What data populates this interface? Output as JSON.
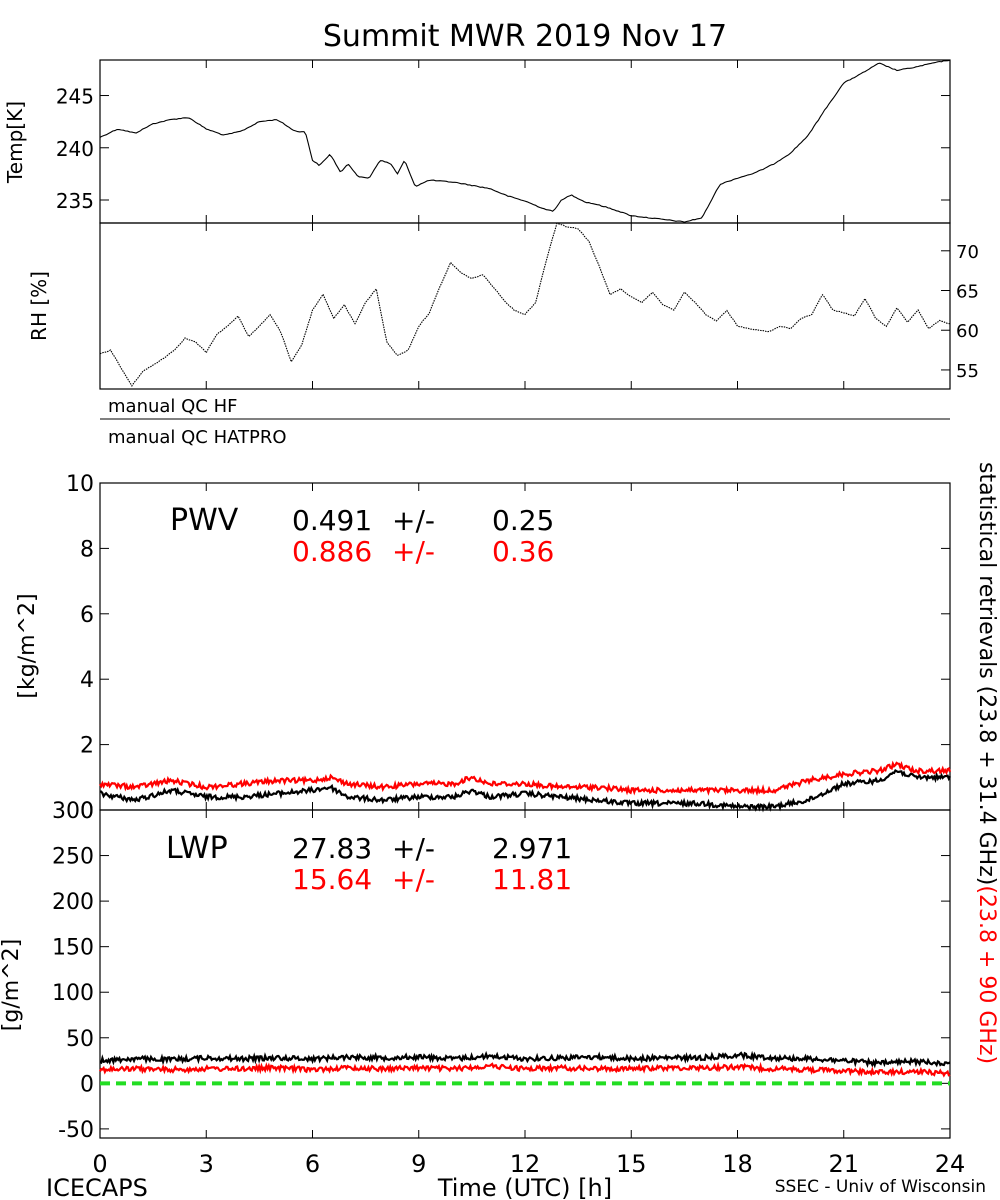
{
  "title": "Summit MWR 2019 Nov 17",
  "footer": {
    "left": "ICECAPS",
    "center": "Time (UTC) [h]",
    "right": "SSEC - Univ of Wisconsin"
  },
  "colors": {
    "primary": "#000000",
    "secondary": "#ff0000",
    "zero_line": "#22dd22"
  },
  "chart_data": [
    {
      "type": "line",
      "panel": "temperature",
      "ylabel": "Temp[K]",
      "ylim": [
        232.8,
        248.4
      ],
      "yticks": [
        235,
        240,
        245
      ],
      "xlim": [
        0,
        24
      ],
      "series": [
        {
          "color": "#000000",
          "x": [
            0,
            0.5,
            1,
            1.5,
            2,
            2.5,
            3,
            3.5,
            4,
            4.5,
            5,
            5.5,
            5.8,
            6,
            6.2,
            6.5,
            6.8,
            7,
            7.3,
            7.6,
            7.9,
            8.2,
            8.4,
            8.6,
            8.9,
            9.3,
            10,
            10.5,
            11,
            11.5,
            12,
            12.5,
            12.8,
            13,
            13.3,
            13.7,
            14,
            14.5,
            15,
            15.5,
            16,
            16.5,
            17,
            17.5,
            18,
            18.5,
            19,
            19.5,
            20,
            20.5,
            21,
            21.5,
            22,
            22.5,
            23,
            23.5,
            24
          ],
          "values": [
            241,
            241.8,
            241.4,
            242.3,
            242.7,
            242.9,
            241.8,
            241.2,
            241.6,
            242.5,
            242.7,
            241.6,
            241.5,
            238.8,
            238.3,
            239.4,
            237.6,
            238.5,
            237.2,
            237.1,
            238.8,
            238.5,
            237.5,
            238.8,
            236.3,
            236.9,
            236.7,
            236.4,
            236.1,
            235.4,
            234.9,
            234.2,
            233.9,
            234.9,
            235.5,
            234.8,
            234.6,
            234.1,
            233.5,
            233.3,
            233.1,
            232.9,
            233.3,
            236.5,
            237.1,
            237.6,
            238.4,
            239.5,
            241.2,
            243.8,
            246.2,
            247.1,
            248.1,
            247.4,
            247.7,
            248.1,
            248.4
          ]
        }
      ]
    },
    {
      "type": "line",
      "panel": "relative-humidity",
      "ylabel": "RH [%]",
      "ylim": [
        52.6,
        73.5
      ],
      "yticks": [
        55,
        60,
        65,
        70
      ],
      "xlim": [
        0,
        24
      ],
      "series": [
        {
          "color": "#000000",
          "x": [
            0,
            0.3,
            0.6,
            0.9,
            1.2,
            1.5,
            1.8,
            2.1,
            2.4,
            2.7,
            3,
            3.3,
            3.6,
            3.9,
            4.2,
            4.5,
            4.8,
            5.1,
            5.4,
            5.7,
            6,
            6.3,
            6.6,
            6.9,
            7.2,
            7.5,
            7.8,
            8.1,
            8.4,
            8.7,
            9,
            9.3,
            9.6,
            9.9,
            10.2,
            10.5,
            10.8,
            11.1,
            11.4,
            11.7,
            12,
            12.3,
            12.6,
            12.9,
            13.2,
            13.5,
            13.8,
            14.1,
            14.4,
            14.7,
            15,
            15.3,
            15.6,
            15.9,
            16.2,
            16.5,
            16.8,
            17.1,
            17.4,
            17.7,
            18,
            18.3,
            18.6,
            18.9,
            19.2,
            19.5,
            19.8,
            20.1,
            20.4,
            20.7,
            21,
            21.3,
            21.6,
            21.9,
            22.2,
            22.5,
            22.8,
            23.1,
            23.4,
            23.7,
            24
          ],
          "values": [
            57,
            57.5,
            55.2,
            53,
            54.8,
            55.6,
            56.5,
            57.5,
            59,
            58.5,
            57.2,
            59.5,
            60.5,
            61.8,
            59.2,
            60.5,
            62,
            59.8,
            56,
            58.2,
            62.5,
            64.5,
            61.5,
            63.2,
            60.8,
            63.5,
            65.2,
            58.5,
            56.8,
            57.5,
            60.5,
            62.2,
            65.5,
            68.5,
            67.2,
            66.5,
            67,
            65.5,
            63.8,
            62.5,
            62,
            63.5,
            68.8,
            73.5,
            73,
            72.8,
            71.2,
            68,
            64.5,
            65.2,
            64.2,
            63.5,
            64.8,
            63.2,
            62.5,
            64.8,
            63.5,
            62,
            61.2,
            62.5,
            60.5,
            60.2,
            60,
            59.8,
            60.5,
            60.2,
            61.5,
            62,
            64.5,
            62.5,
            62.2,
            61.8,
            64,
            61.5,
            60.5,
            62.8,
            61,
            62.5,
            60.2,
            61.2,
            60.8
          ]
        }
      ]
    },
    {
      "type": "line",
      "panel": "pwv",
      "label": "PWV",
      "ylabel": "[kg/m^2]",
      "ylim": [
        0,
        10
      ],
      "yticks": [
        0,
        2,
        4,
        6,
        8,
        10
      ],
      "xlim": [
        0,
        24
      ],
      "stats": [
        {
          "color": "#000000",
          "mean": "0.491",
          "pm": "+/-",
          "sd": "0.25"
        },
        {
          "color": "#ff0000",
          "mean": "0.886",
          "pm": "+/-",
          "sd": "0.36"
        }
      ],
      "series": [
        {
          "color": "#000000",
          "x": [
            0,
            1,
            2,
            3,
            4,
            5,
            6,
            6.5,
            7,
            8,
            9,
            10,
            10.5,
            11,
            12,
            13,
            14,
            15,
            16,
            17,
            18,
            19,
            20,
            21,
            22,
            22.5,
            23,
            24
          ],
          "values": [
            0.5,
            0.3,
            0.6,
            0.4,
            0.4,
            0.5,
            0.6,
            0.7,
            0.4,
            0.3,
            0.4,
            0.4,
            0.6,
            0.4,
            0.5,
            0.4,
            0.3,
            0.2,
            0.2,
            0.2,
            0.1,
            0.1,
            0.3,
            0.8,
            0.9,
            1.2,
            1.0,
            1.0
          ]
        },
        {
          "color": "#ff0000",
          "x": [
            0,
            1,
            2,
            3,
            4,
            5,
            6,
            6.5,
            7,
            8,
            9,
            10,
            10.5,
            11,
            12,
            13,
            14,
            15,
            16,
            17,
            18,
            19,
            20,
            21,
            22,
            22.5,
            23,
            24
          ],
          "values": [
            0.8,
            0.7,
            0.9,
            0.7,
            0.8,
            0.9,
            0.9,
            1.0,
            0.8,
            0.7,
            0.8,
            0.8,
            1.0,
            0.8,
            0.8,
            0.7,
            0.7,
            0.6,
            0.6,
            0.6,
            0.6,
            0.6,
            0.9,
            1.1,
            1.2,
            1.4,
            1.2,
            1.2
          ]
        }
      ]
    },
    {
      "type": "line",
      "panel": "lwp",
      "label": "LWP",
      "ylabel": "[g/m^2]",
      "ylim": [
        -60,
        300
      ],
      "yticks": [
        -50,
        0,
        50,
        100,
        150,
        200,
        250,
        300
      ],
      "xlim": [
        0,
        24
      ],
      "xticks": [
        0,
        3,
        6,
        9,
        12,
        15,
        18,
        21,
        24
      ],
      "stats": [
        {
          "color": "#000000",
          "mean": "27.83",
          "pm": "+/-",
          "sd": "2.971"
        },
        {
          "color": "#ff0000",
          "mean": "15.64",
          "pm": "+/-",
          "sd": "11.81"
        }
      ],
      "reference_line": {
        "y": 0,
        "color": "#22dd22",
        "style": "dashed"
      },
      "series": [
        {
          "color": "#000000",
          "x": [
            0,
            1,
            2,
            3,
            4,
            5,
            6,
            7,
            8,
            9,
            10,
            11,
            12,
            13,
            14,
            15,
            16,
            17,
            18,
            19,
            20,
            21,
            22,
            23,
            24
          ],
          "values": [
            25,
            27,
            26,
            28,
            27,
            28,
            27,
            29,
            28,
            29,
            27,
            30,
            27,
            28,
            29,
            27,
            28,
            28,
            31,
            28,
            27,
            25,
            22,
            24,
            22
          ]
        },
        {
          "color": "#ff0000",
          "x": [
            0,
            1,
            2,
            3,
            4,
            5,
            6,
            7,
            8,
            9,
            10,
            11,
            12,
            13,
            14,
            15,
            16,
            17,
            18,
            19,
            20,
            21,
            22,
            23,
            24
          ],
          "values": [
            15,
            16,
            15,
            16,
            16,
            17,
            15,
            17,
            16,
            17,
            16,
            19,
            16,
            17,
            16,
            16,
            17,
            17,
            18,
            16,
            15,
            14,
            12,
            13,
            11
          ]
        }
      ]
    }
  ],
  "qc_strips": [
    "manual QC HF",
    "manual QC HATPRO"
  ],
  "right_annotation": {
    "part1": "statistical retrievals (23.8 + 31.4 GHz)",
    "part2": "(23.8 + 90 GHz)"
  }
}
